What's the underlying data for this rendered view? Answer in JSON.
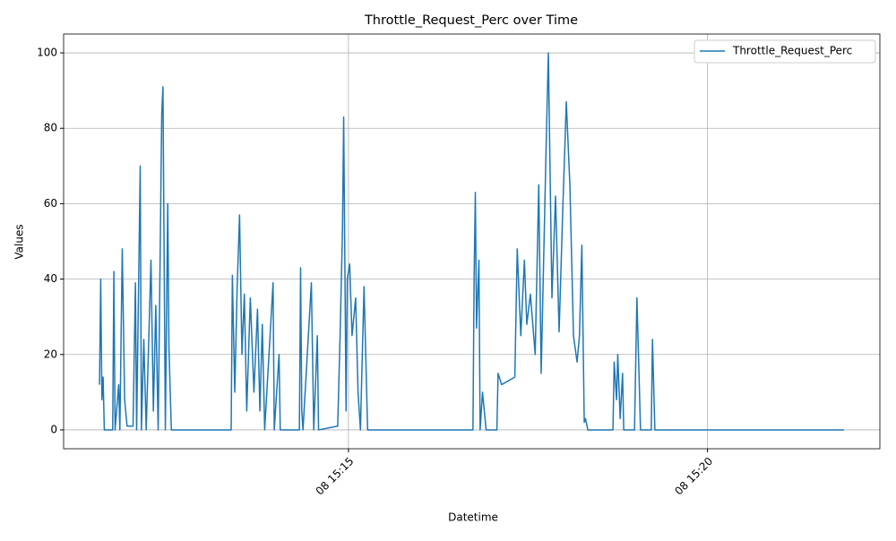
{
  "chart_data": {
    "type": "line",
    "title": "Throttle_Request_Perc over Time",
    "x_label": "Datetime",
    "y_label": "Values",
    "x": [
      "08 15:11:32",
      "08 15:11:33",
      "08 15:11:34",
      "08 15:11:35",
      "08 15:11:36",
      "08 15:11:43",
      "08 15:11:44",
      "08 15:11:45",
      "08 15:11:48",
      "08 15:11:49",
      "08 15:11:51",
      "08 15:11:53",
      "08 15:11:55",
      "08 15:12:00",
      "08 15:12:02",
      "08 15:12:03",
      "08 15:12:06",
      "08 15:12:07",
      "08 15:12:09",
      "08 15:12:11",
      "08 15:12:15",
      "08 15:12:17",
      "08 15:12:19",
      "08 15:12:21",
      "08 15:12:24",
      "08 15:12:25",
      "08 15:12:27",
      "08 15:12:29",
      "08 15:12:30",
      "08 15:12:32",
      "08 15:13:22",
      "08 15:13:23",
      "08 15:13:25",
      "08 15:13:27",
      "08 15:13:29",
      "08 15:13:31",
      "08 15:13:33",
      "08 15:13:35",
      "08 15:13:38",
      "08 15:13:41",
      "08 15:13:44",
      "08 15:13:46",
      "08 15:13:48",
      "08 15:13:50",
      "08 15:13:57",
      "08 15:13:58",
      "08 15:14:02",
      "08 15:14:03",
      "08 15:14:19",
      "08 15:14:20",
      "08 15:14:21",
      "08 15:14:22",
      "08 15:14:29",
      "08 15:14:31",
      "08 15:14:34",
      "08 15:14:35",
      "08 15:14:51",
      "08 15:14:53",
      "08 15:14:55",
      "08 15:14:56",
      "08 15:14:58",
      "08 15:14:59",
      "08 15:15:01",
      "08 15:15:03",
      "08 15:15:06",
      "08 15:15:08",
      "08 15:15:10",
      "08 15:15:13",
      "08 15:15:16",
      "08 15:16:44",
      "08 15:16:45",
      "08 15:16:46",
      "08 15:16:47",
      "08 15:16:49",
      "08 15:16:50",
      "08 15:16:52",
      "08 15:16:55",
      "08 15:17:04",
      "08 15:17:05",
      "08 15:17:08",
      "08 15:17:19",
      "08 15:17:21",
      "08 15:17:24",
      "08 15:17:27",
      "08 15:17:29",
      "08 15:17:32",
      "08 15:17:36",
      "08 15:17:39",
      "08 15:17:41",
      "08 15:17:45",
      "08 15:17:47",
      "08 15:17:50",
      "08 15:17:53",
      "08 15:17:56",
      "08 15:17:59",
      "08 15:18:01",
      "08 15:18:02",
      "08 15:18:05",
      "08 15:18:08",
      "08 15:18:11",
      "08 15:18:13",
      "08 15:18:15",
      "08 15:18:17",
      "08 15:18:18",
      "08 15:18:20",
      "08 15:18:41",
      "08 15:18:42",
      "08 15:18:44",
      "08 15:18:45",
      "08 15:18:47",
      "08 15:18:49",
      "08 15:18:50",
      "08 15:18:59",
      "08 15:19:01",
      "08 15:19:03",
      "08 15:19:04",
      "08 15:19:13",
      "08 15:19:14",
      "08 15:19:16",
      "08 15:21:54"
    ],
    "series": [
      {
        "name": "Throttle_Request_Perc",
        "color": "#1f77b4",
        "values": [
          12,
          40,
          8,
          14,
          0,
          0,
          42,
          0,
          12,
          0,
          48,
          8,
          1,
          1,
          39,
          0,
          70,
          0,
          24,
          0,
          45,
          5,
          33,
          0,
          84,
          91,
          0,
          60,
          22,
          0,
          0,
          41,
          10,
          38,
          57,
          20,
          36,
          5,
          35,
          10,
          32,
          5,
          28,
          0,
          39,
          0,
          20,
          0,
          0,
          43,
          5,
          0,
          39,
          0,
          25,
          0,
          1,
          25,
          53,
          83,
          5,
          40,
          44,
          25,
          35,
          10,
          0,
          38,
          0,
          0,
          41,
          63,
          27,
          45,
          0,
          10,
          0,
          0,
          15,
          12,
          14,
          48,
          25,
          45,
          28,
          36,
          20,
          65,
          15,
          73,
          100,
          35,
          62,
          26,
          58,
          77,
          87,
          65,
          25,
          18,
          25,
          49,
          2,
          3,
          0,
          0,
          18,
          8,
          20,
          3,
          15,
          0,
          0,
          35,
          12,
          0,
          0,
          24,
          0,
          0
        ]
      }
    ],
    "xlim": [
      "08 15:11:02",
      "08 15:22:24"
    ],
    "xticks": [
      "08 15:15",
      "08 15:20"
    ],
    "ylim": [
      -5,
      105
    ],
    "yticks": [
      0,
      20,
      40,
      60,
      80,
      100
    ],
    "grid": true,
    "legend": "upper right"
  }
}
